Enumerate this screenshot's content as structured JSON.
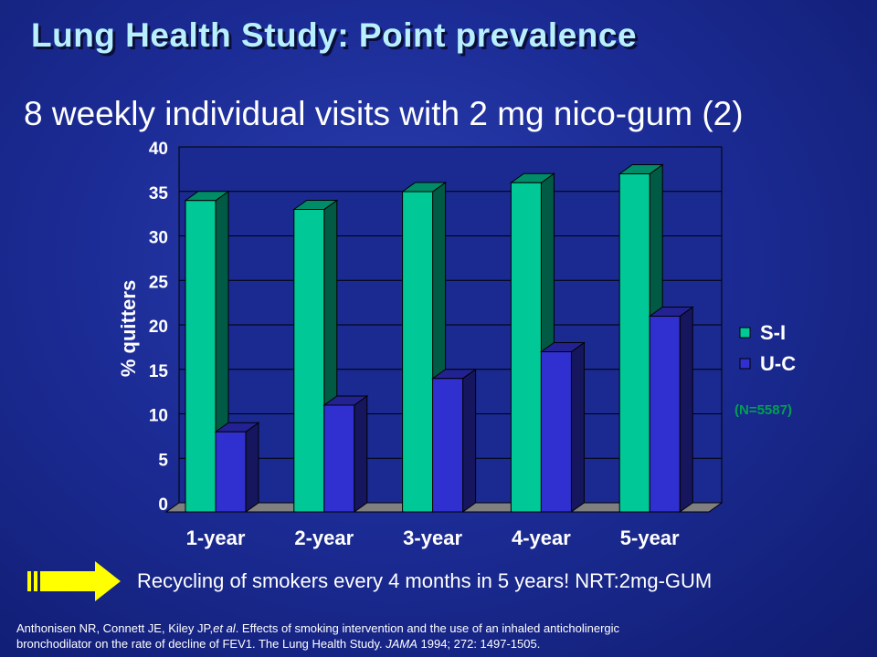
{
  "slide": {
    "title": "Lung Health Study: Point prevalence",
    "subtitle": "8 weekly individual visits with 2 mg nico-gum (2)",
    "footer_note": "Recycling of smokers every 4 months in 5 years! NRT:2mg-GUM",
    "citation_line1_pre": "Anthonisen NR, Connett JE, Kiley JP,",
    "citation_line1_em": "et al",
    "citation_line1_post": ". Effects of smoking intervention and the use of an inhaled anticholinergic",
    "citation_line2_pre": "bronchodilator on the rate of decline of FEV1. The Lung Health Study. ",
    "citation_line2_em": "JAMA",
    "citation_line2_post": " 1994; 272: 1497-1505.",
    "arrow_icon": "yellow-right-arrow-icon"
  },
  "chart_data": {
    "type": "bar",
    "categories": [
      "1-year",
      "2-year",
      "3-year",
      "4-year",
      "5-year"
    ],
    "series": [
      {
        "name": "S-I",
        "values": [
          35,
          34,
          36,
          37,
          38
        ],
        "color": "#00c896"
      },
      {
        "name": "U-C",
        "values": [
          9,
          12,
          15,
          18,
          22
        ],
        "color": "#3030d0"
      }
    ],
    "ylabel": "% quitters",
    "ylim": [
      0,
      40
    ],
    "yticks": [
      0,
      5,
      10,
      15,
      20,
      25,
      30,
      35,
      40
    ],
    "grid": true,
    "legend_position": "right",
    "annotation": "(N=5587)",
    "annotation_color": "#00a050"
  }
}
